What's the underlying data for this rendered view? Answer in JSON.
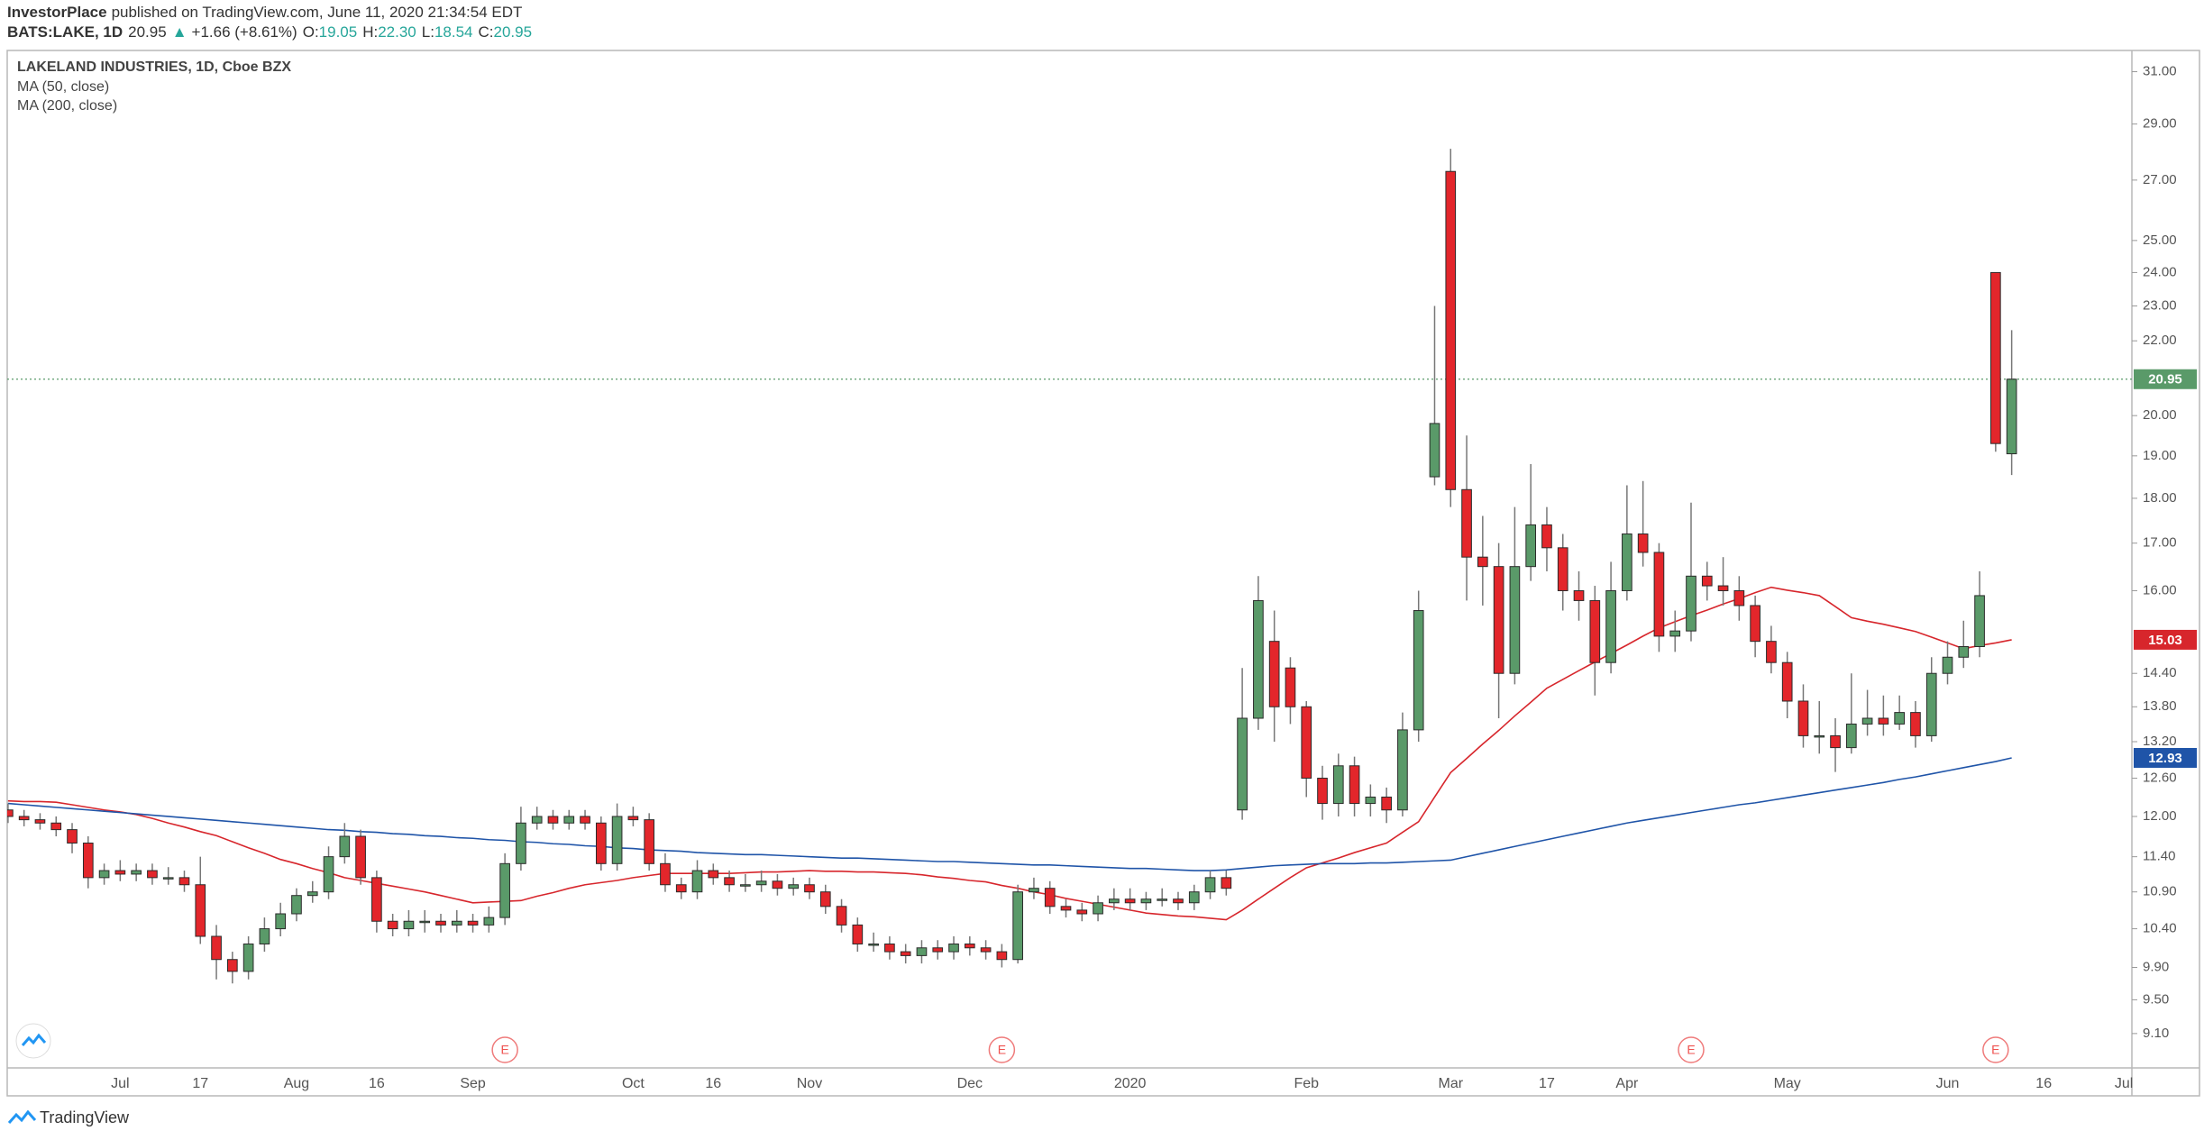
{
  "header": {
    "publisher": "InvestorPlace",
    "published": "published on TradingView.com, June 11, 2020 21:34:54 EDT",
    "symbol": "BATS:LAKE, 1D",
    "last": "20.95",
    "arrow": "▲",
    "change": "+1.66 (+8.61%)",
    "ohlc": [
      {
        "label": "O:",
        "value": "19.05"
      },
      {
        "label": "H:",
        "value": "22.30"
      },
      {
        "label": "L:",
        "value": "18.54"
      },
      {
        "label": "C:",
        "value": "20.95"
      }
    ]
  },
  "footer": {
    "brand": "TradingView"
  },
  "chart_data": {
    "type": "candlestick",
    "title": "LAKELAND INDUSTRIES, 1D, Cboe BZX",
    "categories": [
      null,
      null,
      null,
      null,
      null,
      null,
      null,
      "Jul",
      null,
      null,
      null,
      null,
      "17",
      null,
      null,
      null,
      null,
      null,
      "Aug",
      null,
      null,
      null,
      null,
      "16",
      null,
      null,
      null,
      null,
      null,
      "Sep",
      null,
      null,
      null,
      null,
      null,
      null,
      null,
      null,
      null,
      "Oct",
      null,
      null,
      null,
      null,
      "16",
      null,
      null,
      null,
      null,
      null,
      "Nov",
      null,
      null,
      null,
      null,
      null,
      null,
      null,
      null,
      null,
      "Dec",
      null,
      null,
      null,
      null,
      null,
      null,
      null,
      null,
      null,
      "2020",
      null,
      null,
      null,
      null,
      null,
      null,
      null,
      null,
      null,
      null,
      "Feb",
      null,
      null,
      null,
      null,
      null,
      null,
      null,
      null,
      "Mar",
      null,
      null,
      null,
      null,
      null,
      "17",
      null,
      null,
      null,
      null,
      "Apr",
      null,
      null,
      null,
      null,
      null,
      null,
      null,
      null,
      null,
      "May",
      null,
      null,
      null,
      null,
      null,
      null,
      null,
      null,
      null,
      "Jun",
      null,
      null,
      null,
      null,
      null,
      "16",
      null,
      null,
      null,
      null,
      "Jul"
    ],
    "candles": {
      "up_color": "#5a9a69",
      "down_color": "#e3262b",
      "open": [
        12.1,
        12.0,
        11.95,
        11.9,
        11.8,
        11.6,
        11.1,
        11.2,
        11.15,
        11.2,
        11.1,
        11.1,
        11.0,
        10.3,
        10.0,
        9.85,
        10.2,
        10.4,
        10.6,
        10.85,
        10.9,
        11.4,
        11.7,
        11.1,
        10.5,
        10.4,
        10.5,
        10.5,
        10.45,
        10.5,
        10.45,
        10.55,
        11.3,
        11.9,
        12.0,
        11.9,
        12.0,
        11.9,
        11.3,
        12.0,
        11.95,
        11.3,
        11.0,
        10.9,
        11.2,
        11.1,
        11.0,
        11.0,
        11.05,
        10.95,
        11.0,
        10.9,
        10.7,
        10.45,
        10.2,
        10.2,
        10.1,
        10.05,
        10.15,
        10.1,
        10.2,
        10.15,
        10.1,
        10.0,
        10.9,
        10.95,
        10.7,
        10.65,
        10.6,
        10.75,
        10.8,
        10.75,
        10.8,
        10.8,
        10.75,
        10.9,
        11.1,
        12.1,
        13.6,
        15.0,
        14.5,
        13.8,
        12.6,
        12.2,
        12.8,
        12.2,
        12.3,
        12.1,
        13.4,
        18.5,
        27.3,
        18.2,
        16.7,
        16.5,
        14.4,
        16.5,
        17.4,
        16.9,
        16.0,
        15.8,
        14.6,
        16.0,
        17.2,
        16.8,
        15.1,
        15.2,
        16.3,
        16.1,
        16.0,
        15.7,
        15.0,
        14.6,
        13.9,
        13.3,
        13.3,
        13.1,
        13.5,
        13.6,
        13.5,
        13.7,
        13.3,
        14.4,
        14.7,
        14.9,
        24.0,
        19.05,
        null,
        null,
        null,
        null,
        null,
        null,
        null
      ],
      "high": [
        12.2,
        12.1,
        12.05,
        12.0,
        11.9,
        11.7,
        11.3,
        11.35,
        11.3,
        11.3,
        11.25,
        11.2,
        11.4,
        10.45,
        10.1,
        10.3,
        10.55,
        10.75,
        10.95,
        11.05,
        11.55,
        11.9,
        11.8,
        11.2,
        10.6,
        10.65,
        10.65,
        10.6,
        10.65,
        10.6,
        10.7,
        11.45,
        12.15,
        12.15,
        12.1,
        12.1,
        12.1,
        12.0,
        12.2,
        12.15,
        12.05,
        11.45,
        11.1,
        11.35,
        11.3,
        11.2,
        11.15,
        11.2,
        11.15,
        11.1,
        11.1,
        11.0,
        10.8,
        10.55,
        10.35,
        10.3,
        10.2,
        10.25,
        10.25,
        10.3,
        10.3,
        10.25,
        10.2,
        11.0,
        11.1,
        11.05,
        10.8,
        10.75,
        10.85,
        10.95,
        10.95,
        10.9,
        10.95,
        10.9,
        11.0,
        11.2,
        11.2,
        14.5,
        16.3,
        15.6,
        14.7,
        13.9,
        12.8,
        13.0,
        12.95,
        12.5,
        12.45,
        13.7,
        16.0,
        23.0,
        28.1,
        19.5,
        17.6,
        17.0,
        17.8,
        18.8,
        17.8,
        17.2,
        16.4,
        16.1,
        16.6,
        18.3,
        18.4,
        17.0,
        15.6,
        17.9,
        16.6,
        16.7,
        16.3,
        15.9,
        15.3,
        14.8,
        14.2,
        13.9,
        13.6,
        14.4,
        14.1,
        14.0,
        14.0,
        13.9,
        14.7,
        15.0,
        15.4,
        16.4,
        24.0,
        22.3,
        null,
        null,
        null,
        null,
        null,
        null,
        null
      ],
      "low": [
        11.9,
        11.85,
        11.8,
        11.7,
        11.45,
        10.95,
        11.0,
        11.05,
        11.05,
        11.0,
        11.0,
        10.9,
        10.2,
        9.75,
        9.7,
        9.75,
        10.1,
        10.3,
        10.5,
        10.75,
        10.8,
        11.3,
        11.0,
        10.35,
        10.3,
        10.3,
        10.35,
        10.35,
        10.35,
        10.35,
        10.35,
        10.45,
        11.2,
        11.8,
        11.8,
        11.8,
        11.8,
        11.2,
        11.2,
        11.85,
        11.2,
        10.9,
        10.8,
        10.8,
        11.0,
        10.9,
        10.9,
        10.9,
        10.85,
        10.85,
        10.8,
        10.6,
        10.35,
        10.1,
        10.1,
        10.0,
        9.95,
        9.95,
        10.0,
        10.0,
        10.05,
        10.0,
        9.9,
        9.95,
        10.8,
        10.6,
        10.55,
        10.5,
        10.5,
        10.65,
        10.65,
        10.65,
        10.7,
        10.65,
        10.65,
        10.8,
        10.85,
        11.95,
        13.4,
        13.2,
        13.5,
        12.3,
        11.95,
        12.0,
        12.0,
        12.0,
        11.9,
        12.0,
        13.2,
        18.3,
        17.8,
        15.8,
        15.7,
        13.6,
        14.2,
        16.2,
        16.4,
        15.6,
        15.4,
        14.0,
        14.4,
        15.8,
        16.5,
        14.8,
        14.8,
        15.0,
        15.8,
        15.7,
        15.4,
        14.7,
        14.4,
        13.6,
        13.1,
        13.0,
        12.7,
        13.0,
        13.3,
        13.3,
        13.4,
        13.1,
        13.2,
        14.2,
        14.5,
        14.7,
        19.1,
        18.54,
        null,
        null,
        null,
        null,
        null,
        null,
        null
      ],
      "close": [
        12.0,
        11.95,
        11.9,
        11.8,
        11.6,
        11.1,
        11.2,
        11.15,
        11.2,
        11.1,
        11.1,
        11.0,
        10.3,
        10.0,
        9.85,
        10.2,
        10.4,
        10.6,
        10.85,
        10.9,
        11.4,
        11.7,
        11.1,
        10.5,
        10.4,
        10.5,
        10.5,
        10.45,
        10.5,
        10.45,
        10.55,
        11.3,
        11.9,
        12.0,
        11.9,
        12.0,
        11.9,
        11.3,
        12.0,
        11.95,
        11.3,
        11.0,
        10.9,
        11.2,
        11.1,
        11.0,
        11.0,
        11.05,
        10.95,
        11.0,
        10.9,
        10.7,
        10.45,
        10.2,
        10.2,
        10.1,
        10.05,
        10.15,
        10.1,
        10.2,
        10.15,
        10.1,
        10.0,
        10.9,
        10.95,
        10.7,
        10.65,
        10.6,
        10.75,
        10.8,
        10.75,
        10.8,
        10.8,
        10.75,
        10.9,
        11.1,
        10.95,
        13.6,
        15.8,
        13.8,
        13.8,
        12.6,
        12.2,
        12.8,
        12.2,
        12.3,
        12.1,
        13.4,
        15.6,
        19.8,
        18.2,
        16.7,
        16.5,
        14.4,
        16.5,
        17.4,
        16.9,
        16.0,
        15.8,
        14.6,
        16.0,
        17.2,
        16.8,
        15.1,
        15.2,
        16.3,
        16.1,
        16.0,
        15.7,
        15.0,
        14.6,
        13.9,
        13.3,
        13.3,
        13.1,
        13.5,
        13.6,
        13.5,
        13.7,
        13.3,
        14.4,
        14.7,
        14.9,
        15.9,
        19.3,
        20.95,
        null,
        null,
        null,
        null,
        null,
        null,
        null
      ]
    },
    "series": [
      {
        "name": "MA (50, close)",
        "color": "#d7262c",
        "values": [
          12.24,
          12.23,
          12.23,
          12.22,
          12.18,
          12.14,
          12.1,
          12.07,
          12.03,
          11.97,
          11.9,
          11.84,
          11.77,
          11.71,
          11.62,
          11.53,
          11.45,
          11.36,
          11.3,
          11.23,
          11.17,
          11.1,
          11.06,
          11.02,
          10.98,
          10.94,
          10.9,
          10.85,
          10.8,
          10.75,
          10.76,
          10.77,
          10.78,
          10.84,
          10.89,
          10.95,
          11.0,
          11.03,
          11.06,
          11.1,
          11.13,
          11.16,
          11.16,
          11.16,
          11.16,
          11.16,
          11.17,
          11.18,
          11.18,
          11.19,
          11.2,
          11.19,
          11.19,
          11.18,
          11.18,
          11.17,
          11.16,
          11.14,
          11.11,
          11.09,
          11.06,
          11.04,
          10.99,
          10.95,
          10.9,
          10.86,
          10.81,
          10.77,
          10.73,
          10.69,
          10.65,
          10.61,
          10.59,
          10.57,
          10.56,
          10.54,
          10.52,
          10.65,
          10.8,
          10.95,
          11.1,
          11.24,
          11.31,
          11.38,
          11.46,
          11.53,
          11.6,
          11.76,
          11.92,
          12.3,
          12.69,
          12.92,
          13.16,
          13.39,
          13.64,
          13.88,
          14.13,
          14.29,
          14.45,
          14.61,
          14.77,
          14.93,
          15.1,
          15.26,
          15.38,
          15.5,
          15.61,
          15.73,
          15.84,
          15.96,
          16.07,
          16.01,
          15.96,
          15.9,
          15.68,
          15.46,
          15.39,
          15.33,
          15.26,
          15.19,
          15.08,
          14.97,
          14.86,
          14.92,
          14.97,
          15.03,
          null,
          null,
          null,
          null,
          null,
          null,
          null
        ]
      },
      {
        "name": "MA (200, close)",
        "color": "#1f54a8",
        "values": [
          12.2,
          12.18,
          12.16,
          12.14,
          12.12,
          12.1,
          12.08,
          12.06,
          12.04,
          12.02,
          12.0,
          11.98,
          11.96,
          11.94,
          11.92,
          11.9,
          11.88,
          11.86,
          11.84,
          11.82,
          11.8,
          11.79,
          11.77,
          11.76,
          11.74,
          11.73,
          11.71,
          11.7,
          11.68,
          11.67,
          11.65,
          11.64,
          11.62,
          11.61,
          11.59,
          11.58,
          11.56,
          11.55,
          11.53,
          11.52,
          11.5,
          11.49,
          11.48,
          11.46,
          11.45,
          11.44,
          11.43,
          11.43,
          11.42,
          11.41,
          11.4,
          11.39,
          11.38,
          11.38,
          11.37,
          11.36,
          11.35,
          11.34,
          11.33,
          11.33,
          11.32,
          11.31,
          11.3,
          11.29,
          11.28,
          11.28,
          11.27,
          11.26,
          11.25,
          11.24,
          11.23,
          11.23,
          11.22,
          11.21,
          11.2,
          11.2,
          11.21,
          11.23,
          11.25,
          11.27,
          11.28,
          11.29,
          11.3,
          11.3,
          11.3,
          11.31,
          11.31,
          11.32,
          11.33,
          11.34,
          11.35,
          11.4,
          11.45,
          11.5,
          11.55,
          11.6,
          11.65,
          11.7,
          11.75,
          11.8,
          11.85,
          11.9,
          11.94,
          11.98,
          12.02,
          12.06,
          12.1,
          12.14,
          12.18,
          12.21,
          12.25,
          12.29,
          12.33,
          12.37,
          12.41,
          12.45,
          12.49,
          12.53,
          12.58,
          12.62,
          12.67,
          12.72,
          12.77,
          12.82,
          12.87,
          12.93,
          null,
          null,
          null,
          null,
          null,
          null,
          null
        ]
      }
    ],
    "events": [
      {
        "label": "E",
        "category": 31
      },
      {
        "label": "E",
        "category": 62
      },
      {
        "label": "E",
        "category": 105
      },
      {
        "label": "E",
        "category": 124
      }
    ],
    "ylim": [
      8.71,
      31.85
    ],
    "log_scale": true,
    "grid": false,
    "last_price_line": true,
    "yticks": [
      {
        "value": 31,
        "label": "31.00"
      },
      {
        "value": 29,
        "label": "29.00"
      },
      {
        "value": 27,
        "label": "27.00"
      },
      {
        "value": 25,
        "label": "25.00"
      },
      {
        "value": 24,
        "label": "24.00"
      },
      {
        "value": 23,
        "label": "23.00"
      },
      {
        "value": 22,
        "label": "22.00"
      },
      {
        "value": 20,
        "label": "20.00"
      },
      {
        "value": 19,
        "label": "19.00"
      },
      {
        "value": 18,
        "label": "18.00"
      },
      {
        "value": 17,
        "label": "17.00"
      },
      {
        "value": 16,
        "label": "16.00"
      },
      {
        "value": 14.4,
        "label": "14.40"
      },
      {
        "value": 13.8,
        "label": "13.80"
      },
      {
        "value": 13.2,
        "label": "13.20"
      },
      {
        "value": 12.6,
        "label": "12.60"
      },
      {
        "value": 12,
        "label": "12.00"
      },
      {
        "value": 11.4,
        "label": "11.40"
      },
      {
        "value": 10.9,
        "label": "10.90"
      },
      {
        "value": 10.4,
        "label": "10.40"
      },
      {
        "value": 9.9,
        "label": "9.90"
      },
      {
        "value": 9.5,
        "label": "9.50"
      },
      {
        "value": 9.1,
        "label": "9.10"
      }
    ]
  }
}
